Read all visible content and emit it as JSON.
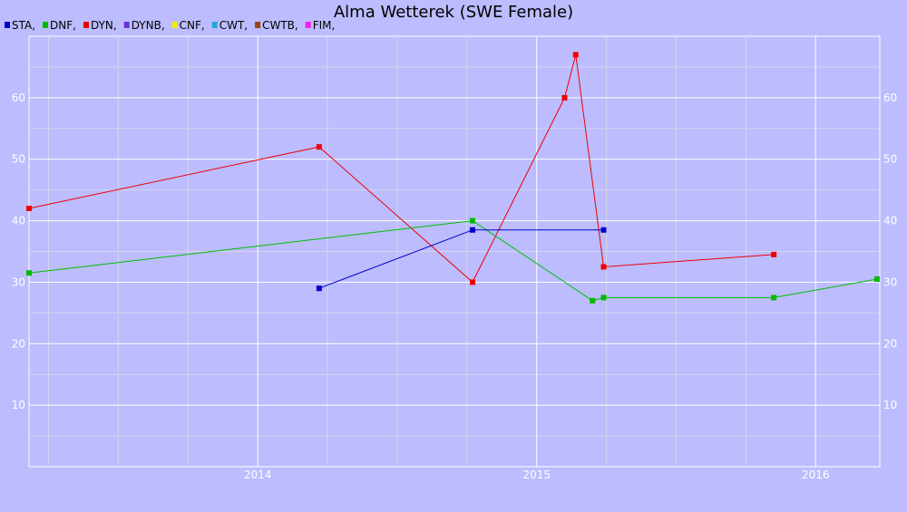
{
  "chart_data": {
    "type": "line",
    "title": "Alma Wetterek (SWE Female)",
    "xlabel": "",
    "ylabel": "",
    "xlim": [
      2013.18,
      2016.23
    ],
    "ylim": [
      0,
      70
    ],
    "x_ticks": [
      {
        "value": 2014.0,
        "label": "2014"
      },
      {
        "value": 2015.0,
        "label": "2015"
      },
      {
        "value": 2016.0,
        "label": "2016"
      }
    ],
    "x_minor_ticks": [
      2013.25,
      2013.5,
      2013.75,
      2014.25,
      2014.5,
      2014.75,
      2015.25,
      2015.5,
      2015.75,
      2016.25
    ],
    "y_ticks": [
      10,
      20,
      30,
      40,
      50,
      60
    ],
    "y_minor_ticks": [
      5,
      15,
      25,
      35,
      45,
      55,
      65
    ],
    "grid": true,
    "legend_position": "top-left",
    "legend": [
      {
        "label": "STA,",
        "color": "#0000cc"
      },
      {
        "label": "DNF,",
        "color": "#00bb00"
      },
      {
        "label": "DYN,",
        "color": "#ee0000"
      },
      {
        "label": "DYNB,",
        "color": "#6633dd"
      },
      {
        "label": "CNF,",
        "color": "#eeee00"
      },
      {
        "label": "CWT,",
        "color": "#22aacc"
      },
      {
        "label": "CWTB,",
        "color": "#994411"
      },
      {
        "label": "FIM,",
        "color": "#ee22ee"
      }
    ],
    "series": [
      {
        "name": "DYN",
        "color": "#ee0000",
        "points": [
          [
            2013.18,
            42
          ],
          [
            2014.22,
            52
          ],
          [
            2014.77,
            30
          ],
          [
            2015.1,
            60
          ],
          [
            2015.14,
            67
          ],
          [
            2015.24,
            32.5
          ],
          [
            2015.85,
            34.5
          ]
        ]
      },
      {
        "name": "DNF",
        "color": "#00bb00",
        "points": [
          [
            2013.18,
            31.5
          ],
          [
            2014.77,
            40
          ],
          [
            2015.2,
            27
          ],
          [
            2015.24,
            27.5
          ],
          [
            2015.85,
            27.5
          ],
          [
            2016.22,
            30.5
          ]
        ]
      },
      {
        "name": "STA",
        "color": "#0000cc",
        "points": [
          [
            2014.22,
            29
          ],
          [
            2014.77,
            38.5
          ],
          [
            2015.24,
            38.5
          ]
        ]
      }
    ]
  }
}
